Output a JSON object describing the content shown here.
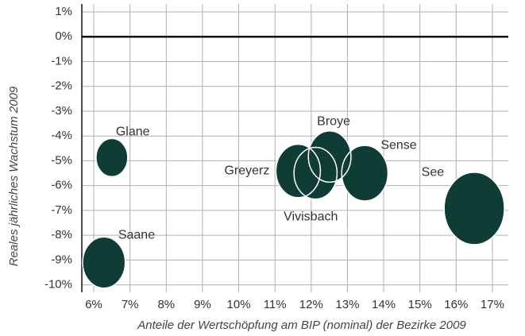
{
  "chart_data": {
    "type": "bubble",
    "x_label": "Anteile der Wertschöpfung am BIP (nominal) der Bezirke 2009",
    "y_label": "Reales jährliches Wachstum 2009",
    "color": "#0f3d36",
    "grid": true,
    "xlim": [
      5.67,
      17.44
    ],
    "ylim": [
      -10.3,
      1.32
    ],
    "xticks": [
      {
        "value": 6,
        "label": "6%"
      },
      {
        "value": 7,
        "label": "7%"
      },
      {
        "value": 8,
        "label": "8%"
      },
      {
        "value": 9,
        "label": "9%"
      },
      {
        "value": 10,
        "label": "10%"
      },
      {
        "value": 11,
        "label": "11%"
      },
      {
        "value": 12,
        "label": "12%"
      },
      {
        "value": 13,
        "label": "13%"
      },
      {
        "value": 14,
        "label": "14%"
      },
      {
        "value": 15,
        "label": "15%"
      },
      {
        "value": 16,
        "label": "16%"
      },
      {
        "value": 17,
        "label": "17%"
      }
    ],
    "yticks": [
      {
        "value": 1,
        "label": "1%"
      },
      {
        "value": 0,
        "label": "0%"
      },
      {
        "value": -1,
        "label": "-1%"
      },
      {
        "value": -2,
        "label": "-2%"
      },
      {
        "value": -3,
        "label": "-3%"
      },
      {
        "value": -4,
        "label": "-4%"
      },
      {
        "value": -5,
        "label": "-5%"
      },
      {
        "value": -6,
        "label": "-6%"
      },
      {
        "value": -7,
        "label": "-7%"
      },
      {
        "value": -8,
        "label": "-8%"
      },
      {
        "value": -9,
        "label": "-9%"
      },
      {
        "value": -10,
        "label": "-10%"
      }
    ],
    "labels": [
      "Glane",
      "Saane",
      "Greyerz",
      "Broye",
      "Vivisbach",
      "Sense",
      "See"
    ],
    "x": [
      6.5,
      6.28,
      11.64,
      12.51,
      12.12,
      13.48,
      16.5
    ],
    "values": [
      -4.87,
      -9.1,
      -5.41,
      -4.83,
      -5.5,
      -5.5,
      -6.92
    ],
    "sizes": [
      25,
      45,
      49,
      45,
      46,
      53,
      90
    ]
  }
}
